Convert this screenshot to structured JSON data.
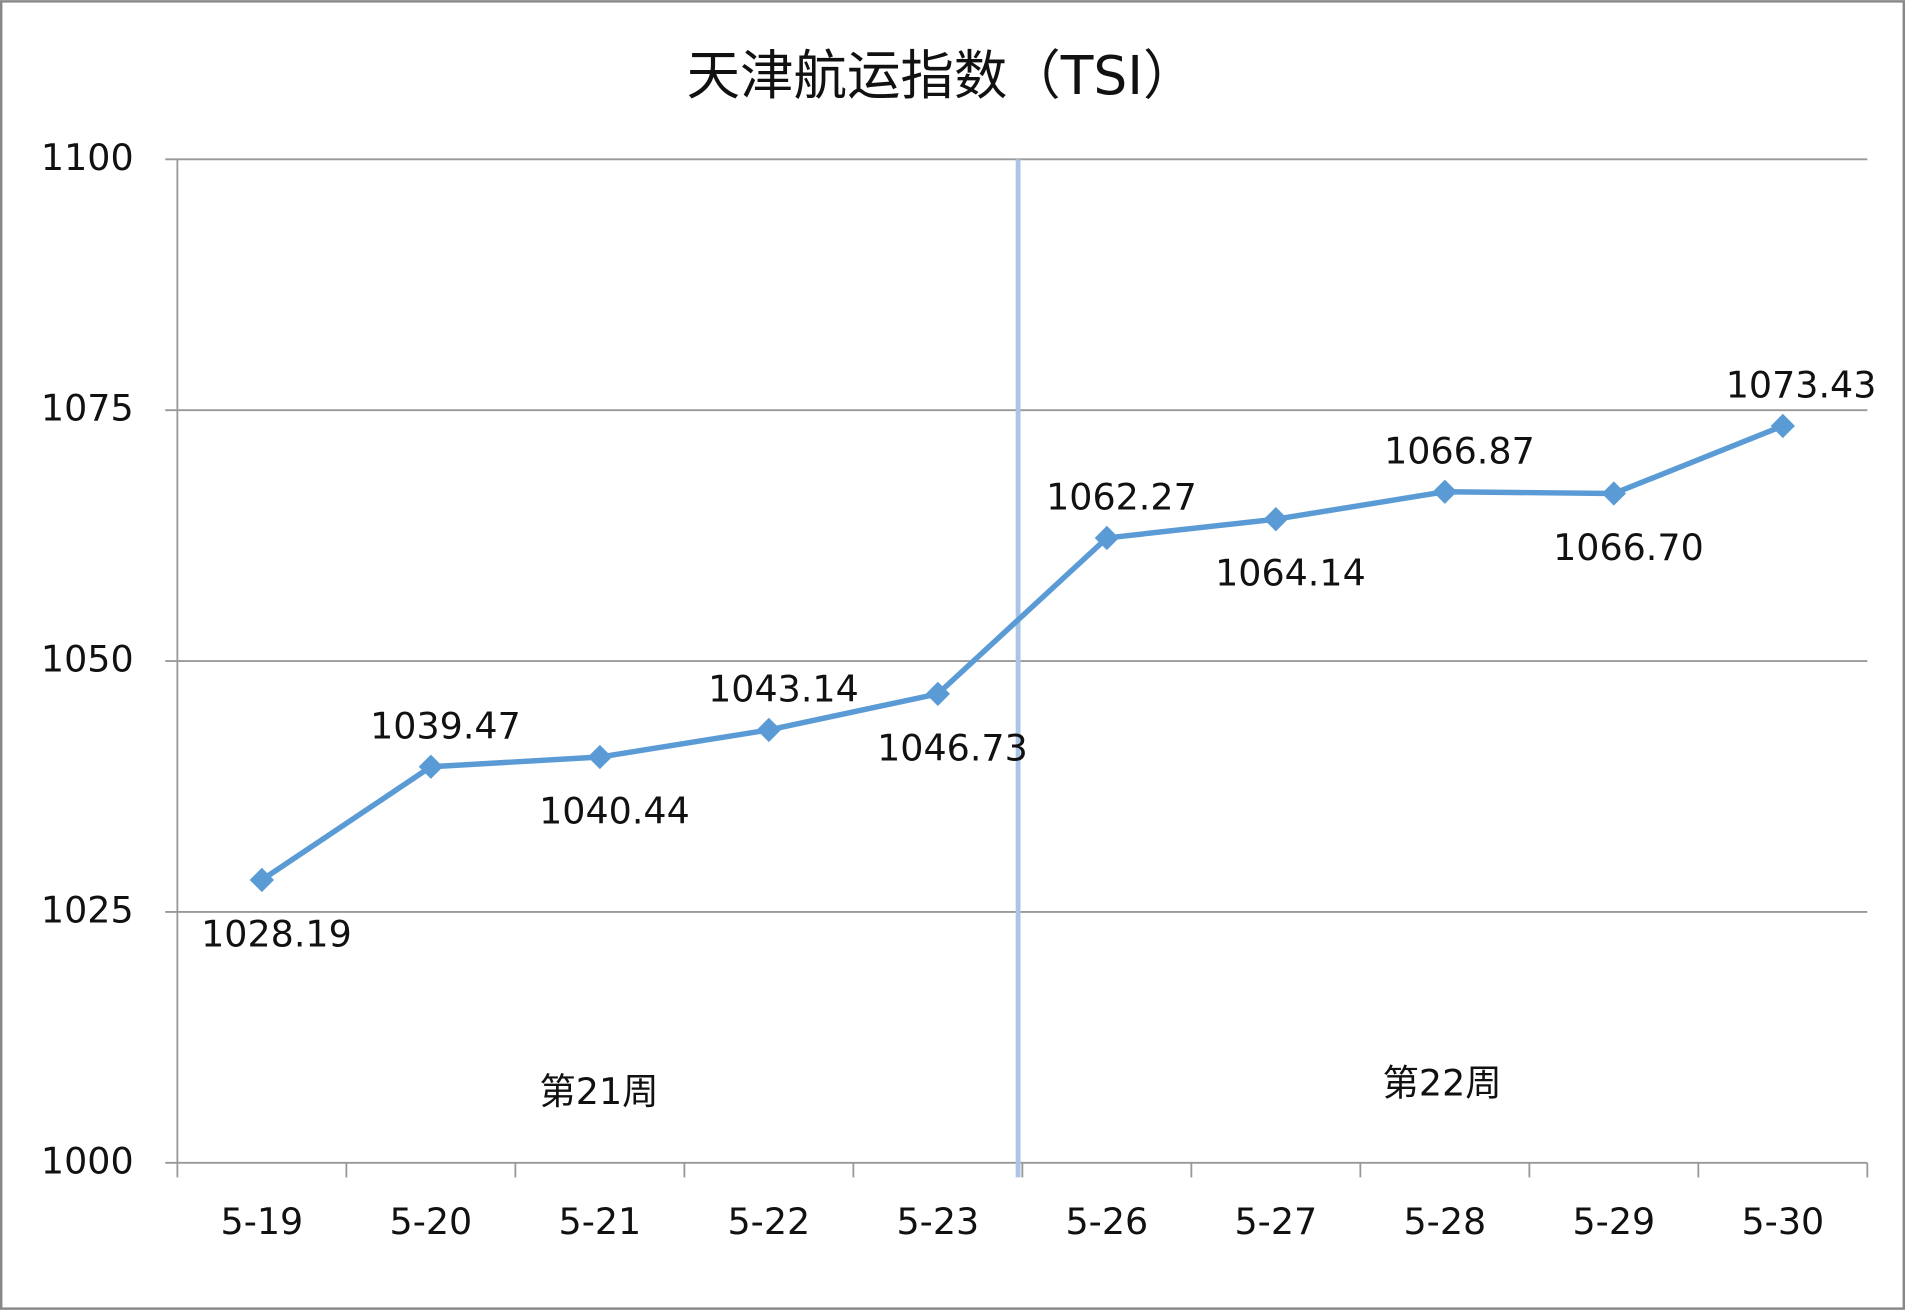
{
  "chart_data": {
    "type": "line",
    "title": "天津航运指数（TSI）",
    "categories": [
      "5-19",
      "5-20",
      "5-21",
      "5-22",
      "5-23",
      "5-26",
      "5-27",
      "5-28",
      "5-29",
      "5-30"
    ],
    "series": [
      {
        "color": "#5b9bd5",
        "values": [
          1028.19,
          1039.47,
          1040.44,
          1043.14,
          1046.73,
          1062.27,
          1064.14,
          1066.87,
          1066.7,
          1073.43
        ],
        "value_labels": [
          "1028.19",
          "1039.47",
          "1040.44",
          "1043.14",
          "1046.73",
          "1062.27",
          "1064.14",
          "1066.87",
          "1066.70",
          "1073.43"
        ]
      }
    ],
    "ylim": [
      1000,
      1100
    ],
    "yticks": [
      1000,
      1025,
      1050,
      1075,
      1100
    ],
    "grid": true,
    "annotations": [
      "第21周",
      "第22周"
    ]
  }
}
